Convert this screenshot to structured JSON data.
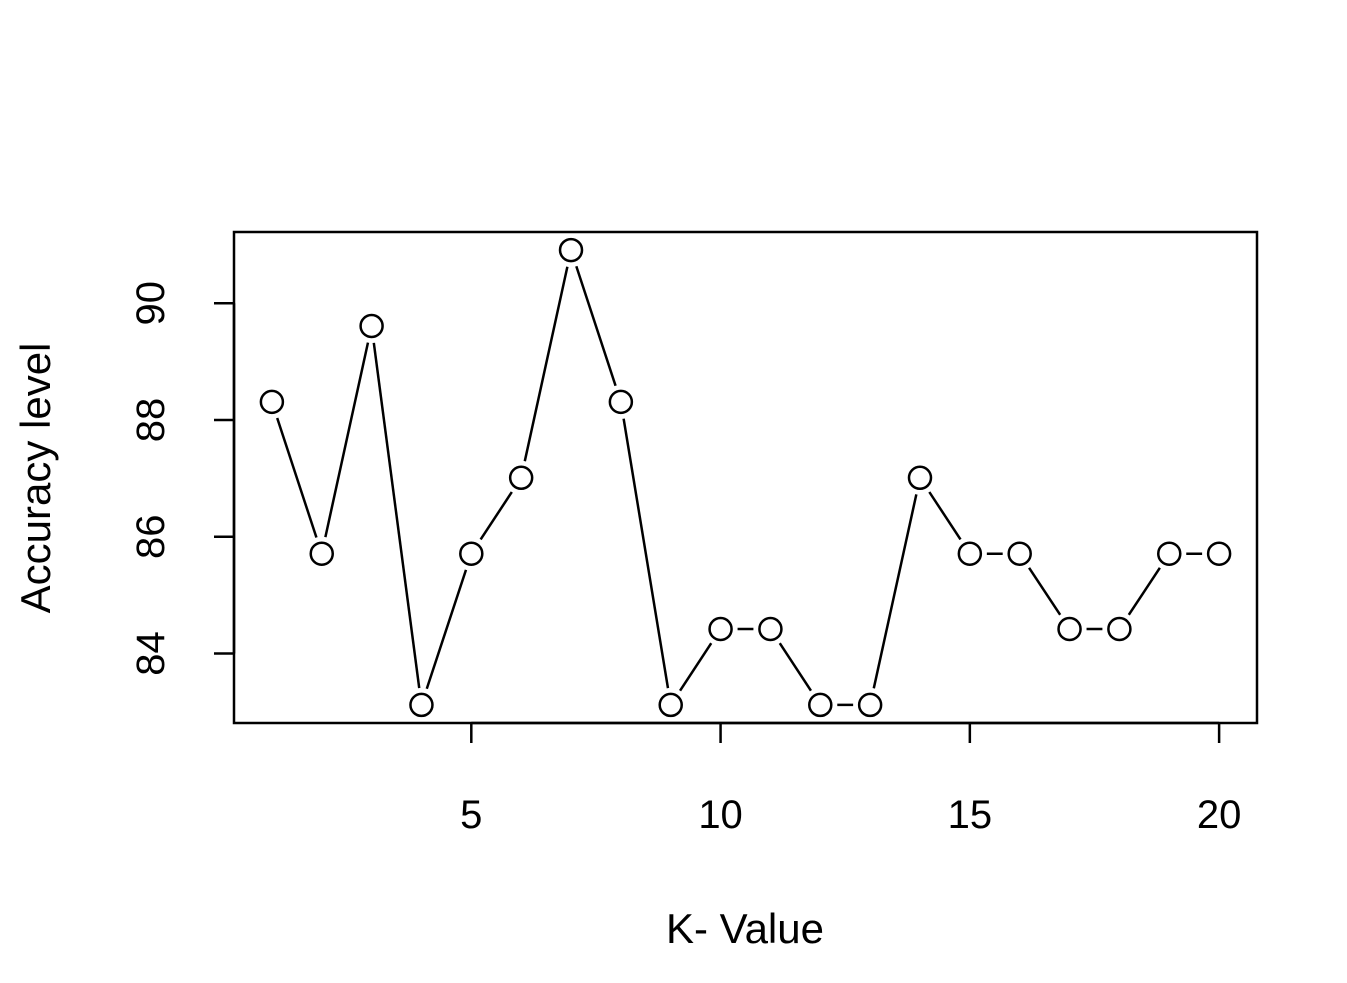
{
  "chart_data": {
    "type": "line",
    "marker": "open-circle",
    "line_style": "overplotted (type b)",
    "title": "",
    "xlabel": "K- Value",
    "ylabel": "Accuracy level",
    "x": [
      1,
      2,
      3,
      4,
      5,
      6,
      7,
      8,
      9,
      10,
      11,
      12,
      13,
      14,
      15,
      16,
      17,
      18,
      19,
      20
    ],
    "y": [
      88.31,
      85.71,
      89.61,
      83.12,
      85.71,
      87.01,
      90.91,
      88.31,
      83.12,
      84.42,
      84.42,
      83.12,
      83.12,
      87.01,
      85.71,
      85.71,
      84.42,
      84.42,
      85.71,
      85.71
    ],
    "xlim": [
      0.24,
      20.76
    ],
    "ylim": [
      82.81,
      91.22
    ],
    "x_ticks": [
      5,
      10,
      15,
      20
    ],
    "x_tick_labels": [
      "5",
      "10",
      "15",
      "20"
    ],
    "y_ticks": [
      84,
      86,
      88,
      90
    ],
    "y_tick_labels": [
      "84",
      "86",
      "88",
      "90"
    ],
    "grid": false,
    "legend": "none",
    "colors": {
      "line": "#000000",
      "marker_fill": "#ffffff",
      "background": "#ffffff"
    }
  }
}
